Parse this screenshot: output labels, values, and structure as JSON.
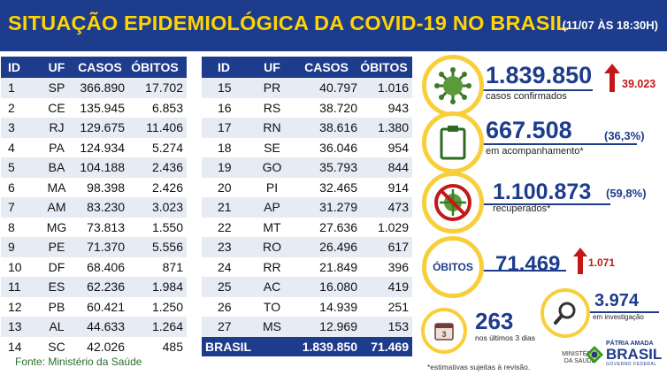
{
  "header": {
    "title": "SITUAÇÃO EPIDEMIOLÓGICA DA COVID-19 NO BRASIL",
    "date": "(11/07 ÀS 18:30H)"
  },
  "table_headers": {
    "id": "ID",
    "uf": "UF",
    "casos": "CASOS",
    "obitos": "ÓBITOS"
  },
  "left_rows": [
    {
      "id": "1",
      "uf": "SP",
      "casos": "366.890",
      "obitos": "17.702"
    },
    {
      "id": "2",
      "uf": "CE",
      "casos": "135.945",
      "obitos": "6.853"
    },
    {
      "id": "3",
      "uf": "RJ",
      "casos": "129.675",
      "obitos": "11.406"
    },
    {
      "id": "4",
      "uf": "PA",
      "casos": "124.934",
      "obitos": "5.274"
    },
    {
      "id": "5",
      "uf": "BA",
      "casos": "104.188",
      "obitos": "2.436"
    },
    {
      "id": "6",
      "uf": "MA",
      "casos": "98.398",
      "obitos": "2.426"
    },
    {
      "id": "7",
      "uf": "AM",
      "casos": "83.230",
      "obitos": "3.023"
    },
    {
      "id": "8",
      "uf": "MG",
      "casos": "73.813",
      "obitos": "1.550"
    },
    {
      "id": "9",
      "uf": "PE",
      "casos": "71.370",
      "obitos": "5.556"
    },
    {
      "id": "10",
      "uf": "DF",
      "casos": "68.406",
      "obitos": "871"
    },
    {
      "id": "11",
      "uf": "ES",
      "casos": "62.236",
      "obitos": "1.984"
    },
    {
      "id": "12",
      "uf": "PB",
      "casos": "60.421",
      "obitos": "1.250"
    },
    {
      "id": "13",
      "uf": "AL",
      "casos": "44.633",
      "obitos": "1.264"
    },
    {
      "id": "14",
      "uf": "SC",
      "casos": "42.026",
      "obitos": "485"
    }
  ],
  "right_rows": [
    {
      "id": "15",
      "uf": "PR",
      "casos": "40.797",
      "obitos": "1.016"
    },
    {
      "id": "16",
      "uf": "RS",
      "casos": "38.720",
      "obitos": "943"
    },
    {
      "id": "17",
      "uf": "RN",
      "casos": "38.616",
      "obitos": "1.380"
    },
    {
      "id": "18",
      "uf": "SE",
      "casos": "36.046",
      "obitos": "954"
    },
    {
      "id": "19",
      "uf": "GO",
      "casos": "35.793",
      "obitos": "844"
    },
    {
      "id": "20",
      "uf": "PI",
      "casos": "32.465",
      "obitos": "914"
    },
    {
      "id": "21",
      "uf": "AP",
      "casos": "31.279",
      "obitos": "473"
    },
    {
      "id": "22",
      "uf": "MT",
      "casos": "27.636",
      "obitos": "1.029"
    },
    {
      "id": "23",
      "uf": "RO",
      "casos": "26.496",
      "obitos": "617"
    },
    {
      "id": "24",
      "uf": "RR",
      "casos": "21.849",
      "obitos": "396"
    },
    {
      "id": "25",
      "uf": "AC",
      "casos": "16.080",
      "obitos": "419"
    },
    {
      "id": "26",
      "uf": "TO",
      "casos": "14.939",
      "obitos": "251"
    },
    {
      "id": "27",
      "uf": "MS",
      "casos": "12.969",
      "obitos": "153"
    }
  ],
  "brasil_total": {
    "label": "BRASIL",
    "casos": "1.839.850",
    "obitos": "71.469"
  },
  "source": "Fonte: Ministério da Saúde",
  "summary": {
    "confirmados": {
      "value": "1.839.850",
      "label": "casos confirmados",
      "delta": "39.023",
      "icon": "virus-icon"
    },
    "acompanhamento": {
      "value": "667.508",
      "pct": "(36,3%)",
      "label": "em acompanhamento*",
      "icon": "clipboard-icon"
    },
    "recuperados": {
      "value": "1.100.873",
      "pct": "(59,8%)",
      "label": "recuperados*",
      "icon": "no-virus-icon"
    },
    "obitos": {
      "label": "ÓBITOS",
      "value": "71.469",
      "delta": "1.071"
    },
    "ultimos": {
      "value": "263",
      "label": "nos últimos 3 dias",
      "calendar_day": "3",
      "icon": "calendar-icon"
    },
    "investigacao": {
      "value": "3.974",
      "label": "em investigação",
      "icon": "magnifier-icon"
    }
  },
  "footnote": "*estimativas sujeitas à revisão.",
  "logos": {
    "ministerio": "MINISTÉRIO DA SAÚDE",
    "patria": "PÁTRIA AMADA",
    "brasil": "BRASIL",
    "governo": "GOVERNO FEDERAL"
  },
  "colors": {
    "navy": "#1e3c8c",
    "yellow": "#f8ce3a",
    "red": "#c41818",
    "green": "#2c6e2c"
  }
}
